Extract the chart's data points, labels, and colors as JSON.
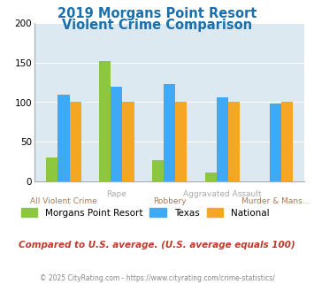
{
  "title_line1": "2019 Morgans Point Resort",
  "title_line2": "Violent Crime Comparison",
  "categories": [
    "All Violent Crime",
    "Rape",
    "Robbery",
    "Aggravated Assault",
    "Murder & Mans..."
  ],
  "series": {
    "Morgans Point Resort": [
      30,
      152,
      27,
      11,
      0
    ],
    "Texas": [
      110,
      120,
      123,
      106,
      98
    ],
    "National": [
      100,
      100,
      100,
      100,
      100
    ]
  },
  "colors": {
    "Morgans Point Resort": "#8dc63f",
    "Texas": "#3fa9f5",
    "National": "#f5a623"
  },
  "ylim": [
    0,
    200
  ],
  "yticks": [
    0,
    50,
    100,
    150,
    200
  ],
  "label_top": [
    "",
    "Rape",
    "",
    "Aggravated Assault",
    ""
  ],
  "label_bottom": [
    "All Violent Crime",
    "",
    "Robbery",
    "",
    "Murder & Mans..."
  ],
  "plot_bg": "#dce9f0",
  "title_color": "#1a6fad",
  "footer_text": "Compared to U.S. average. (U.S. average equals 100)",
  "footer_color": "#c0392b",
  "copyright_text": "© 2025 CityRating.com - https://www.cityrating.com/crime-statistics/",
  "copyright_color": "#888888",
  "label_top_color": "#aaaaaa",
  "label_bottom_color": "#b07850",
  "bar_width": 0.22
}
